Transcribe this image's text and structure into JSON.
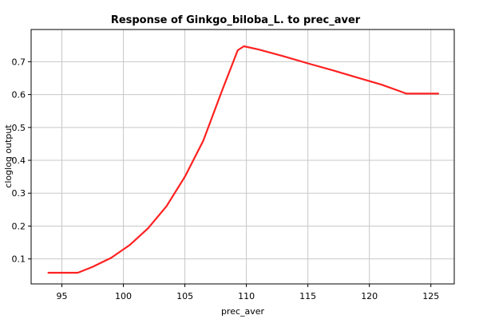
{
  "chart_data": {
    "type": "line",
    "title": "Response of Ginkgo_biloba_L. to prec_aver",
    "xlabel": "prec_aver",
    "ylabel": "cloglog output",
    "xlim": [
      92.5,
      126.9
    ],
    "ylim": [
      0.024,
      0.798
    ],
    "x_ticks": [
      95,
      100,
      105,
      110,
      115,
      120,
      125
    ],
    "y_ticks": [
      0.1,
      0.2,
      0.3,
      0.4,
      0.5,
      0.6,
      0.7
    ],
    "x_tick_labels": [
      "95",
      "100",
      "105",
      "110",
      "115",
      "120",
      "125"
    ],
    "y_tick_labels": [
      "0.1",
      "0.2",
      "0.3",
      "0.4",
      "0.5",
      "0.6",
      "0.7"
    ],
    "grid": true,
    "series_color": "#ff2020",
    "gridline_color": "#c8c8c8",
    "x": [
      93.9,
      96.3,
      97.5,
      99.0,
      100.5,
      102.0,
      103.5,
      105.0,
      106.5,
      108.0,
      109.3,
      109.8,
      111.0,
      113.0,
      115.0,
      117.0,
      119.0,
      121.0,
      122.5,
      123.0,
      124.0,
      125.6
    ],
    "values": [
      0.058,
      0.058,
      0.076,
      0.103,
      0.142,
      0.193,
      0.26,
      0.35,
      0.46,
      0.61,
      0.735,
      0.747,
      0.737,
      0.717,
      0.695,
      0.674,
      0.652,
      0.63,
      0.61,
      0.603,
      0.603,
      0.603
    ]
  }
}
